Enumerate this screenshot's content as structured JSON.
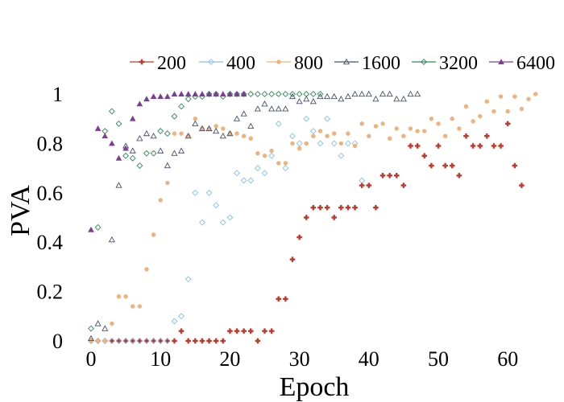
{
  "chart_data": {
    "type": "scatter",
    "xlabel": "Epoch",
    "ylabel": "PVA",
    "xlim": [
      -3,
      65
    ],
    "ylim": [
      0,
      1.05
    ],
    "xticks": [
      0,
      10,
      20,
      30,
      40,
      50,
      60
    ],
    "yticks": [
      0,
      0.2,
      0.4,
      0.6,
      0.8,
      1
    ],
    "ytick_labels": [
      "0",
      "0.2",
      "0.4",
      "0.6",
      "0.8",
      "1"
    ],
    "legend_position": "top",
    "grid": false,
    "series": [
      {
        "name": "200",
        "color": "#c0392b",
        "marker": "plus",
        "points": [
          [
            0,
            0
          ],
          [
            1,
            0
          ],
          [
            2,
            0
          ],
          [
            3,
            0
          ],
          [
            4,
            0
          ],
          [
            5,
            0
          ],
          [
            6,
            0
          ],
          [
            7,
            0
          ],
          [
            8,
            0
          ],
          [
            9,
            0
          ],
          [
            10,
            0
          ],
          [
            11,
            0
          ],
          [
            12,
            0
          ],
          [
            13,
            0.04
          ],
          [
            14,
            0
          ],
          [
            15,
            0
          ],
          [
            16,
            0
          ],
          [
            17,
            0
          ],
          [
            18,
            0
          ],
          [
            19,
            0
          ],
          [
            20,
            0.04
          ],
          [
            21,
            0.04
          ],
          [
            22,
            0.04
          ],
          [
            23,
            0.04
          ],
          [
            24,
            0
          ],
          [
            25,
            0.04
          ],
          [
            26,
            0.04
          ],
          [
            27,
            0.17
          ],
          [
            28,
            0.17
          ],
          [
            29,
            0.33
          ],
          [
            30,
            0.42
          ],
          [
            31,
            0.5
          ],
          [
            32,
            0.54
          ],
          [
            33,
            0.54
          ],
          [
            34,
            0.54
          ],
          [
            35,
            0.5
          ],
          [
            36,
            0.54
          ],
          [
            37,
            0.54
          ],
          [
            38,
            0.54
          ],
          [
            39,
            0.63
          ],
          [
            40,
            0.63
          ],
          [
            41,
            0.54
          ],
          [
            42,
            0.67
          ],
          [
            43,
            0.67
          ],
          [
            44,
            0.67
          ],
          [
            45,
            0.63
          ],
          [
            46,
            0.79
          ],
          [
            47,
            0.79
          ],
          [
            48,
            0.75
          ],
          [
            49,
            0.71
          ],
          [
            50,
            0.79
          ],
          [
            51,
            0.71
          ],
          [
            52,
            0.71
          ],
          [
            53,
            0.67
          ],
          [
            54,
            0.83
          ],
          [
            55,
            0.79
          ],
          [
            56,
            0.79
          ],
          [
            57,
            0.83
          ],
          [
            58,
            0.79
          ],
          [
            59,
            0.79
          ],
          [
            60,
            0.88
          ],
          [
            61,
            0.71
          ],
          [
            62,
            0.63
          ]
        ]
      },
      {
        "name": "400",
        "color": "#85c1e9",
        "marker": "diamond-open",
        "points": [
          [
            0,
            0
          ],
          [
            1,
            0
          ],
          [
            2,
            0
          ],
          [
            3,
            0
          ],
          [
            4,
            0
          ],
          [
            5,
            0
          ],
          [
            6,
            0
          ],
          [
            7,
            0
          ],
          [
            8,
            0
          ],
          [
            9,
            0
          ],
          [
            10,
            0
          ],
          [
            11,
            0
          ],
          [
            12,
            0.08
          ],
          [
            13,
            0.1
          ],
          [
            14,
            0.25
          ],
          [
            15,
            0.6
          ],
          [
            16,
            0.48
          ],
          [
            17,
            0.6
          ],
          [
            18,
            0.55
          ],
          [
            19,
            0.48
          ],
          [
            20,
            0.5
          ],
          [
            21,
            0.68
          ],
          [
            22,
            0.65
          ],
          [
            23,
            0.65
          ],
          [
            24,
            0.7
          ],
          [
            25,
            0.68
          ],
          [
            26,
            0.75
          ],
          [
            27,
            0.88
          ],
          [
            28,
            0.7
          ],
          [
            29,
            0.83
          ],
          [
            30,
            0.8
          ],
          [
            31,
            0.9
          ],
          [
            32,
            0.85
          ],
          [
            33,
            0.8
          ],
          [
            34,
            0.9
          ],
          [
            35,
            0.8
          ],
          [
            36,
            0.75
          ],
          [
            37,
            0.8
          ],
          [
            38,
            0.8
          ],
          [
            39,
            0.65
          ]
        ]
      },
      {
        "name": "800",
        "color": "#f0b27a",
        "marker": "dot",
        "points": [
          [
            0,
            0
          ],
          [
            1,
            0
          ],
          [
            2,
            0
          ],
          [
            3,
            0.07
          ],
          [
            4,
            0.18
          ],
          [
            5,
            0.18
          ],
          [
            6,
            0.14
          ],
          [
            7,
            0.14
          ],
          [
            8,
            0.29
          ],
          [
            9,
            0.43
          ],
          [
            10,
            0.57
          ],
          [
            11,
            0.64
          ],
          [
            12,
            0.84
          ],
          [
            13,
            0.84
          ],
          [
            14,
            0.83
          ],
          [
            15,
            0.9
          ],
          [
            16,
            0.86
          ],
          [
            17,
            0.86
          ],
          [
            18,
            0.87
          ],
          [
            19,
            0.86
          ],
          [
            20,
            0.84
          ],
          [
            21,
            0.84
          ],
          [
            22,
            0.83
          ],
          [
            23,
            0.82
          ],
          [
            24,
            0.76
          ],
          [
            25,
            0.75
          ],
          [
            26,
            0.77
          ],
          [
            27,
            0.72
          ],
          [
            28,
            0.72
          ],
          [
            29,
            0.8
          ],
          [
            30,
            0.78
          ],
          [
            31,
            0.8
          ],
          [
            32,
            0.83
          ],
          [
            33,
            0.85
          ],
          [
            34,
            0.83
          ],
          [
            35,
            0.84
          ],
          [
            36,
            0.8
          ],
          [
            37,
            0.84
          ],
          [
            38,
            0.79
          ],
          [
            39,
            0.88
          ],
          [
            40,
            0.83
          ],
          [
            41,
            0.87
          ],
          [
            42,
            0.88
          ],
          [
            43,
            0.82
          ],
          [
            44,
            0.86
          ],
          [
            45,
            0.83
          ],
          [
            46,
            0.86
          ],
          [
            47,
            0.85
          ],
          [
            48,
            0.85
          ],
          [
            49,
            0.9
          ],
          [
            50,
            0.88
          ],
          [
            51,
            0.83
          ],
          [
            52,
            0.9
          ],
          [
            53,
            0.86
          ],
          [
            54,
            0.95
          ],
          [
            55,
            0.89
          ],
          [
            56,
            0.91
          ],
          [
            57,
            0.97
          ],
          [
            58,
            0.93
          ],
          [
            59,
            0.99
          ],
          [
            60,
            0.93
          ],
          [
            61,
            0.99
          ],
          [
            62,
            0.94
          ],
          [
            63,
            0.98
          ],
          [
            64,
            1.0
          ]
        ]
      },
      {
        "name": "1600",
        "color": "#4a4f6a",
        "marker": "triangle-open",
        "points": [
          [
            0,
            0.01
          ],
          [
            1,
            0.07
          ],
          [
            2,
            0.05
          ],
          [
            3,
            0.41
          ],
          [
            4,
            0.63
          ],
          [
            5,
            0.79
          ],
          [
            6,
            0.77
          ],
          [
            7,
            0.82
          ],
          [
            8,
            0.84
          ],
          [
            9,
            0.83
          ],
          [
            10,
            0.77
          ],
          [
            11,
            0.71
          ],
          [
            12,
            0.76
          ],
          [
            13,
            0.77
          ],
          [
            14,
            0.83
          ],
          [
            15,
            0.88
          ],
          [
            16,
            0.86
          ],
          [
            17,
            0.86
          ],
          [
            18,
            0.85
          ],
          [
            19,
            0.83
          ],
          [
            20,
            0.84
          ],
          [
            21,
            0.9
          ],
          [
            22,
            0.92
          ],
          [
            23,
            0.87
          ],
          [
            24,
            0.94
          ],
          [
            25,
            0.96
          ],
          [
            26,
            0.94
          ],
          [
            27,
            0.94
          ],
          [
            28,
            0.94
          ],
          [
            29,
            0.99
          ],
          [
            30,
            0.97
          ],
          [
            31,
            0.98
          ],
          [
            32,
            0.97
          ],
          [
            33,
            0.99
          ],
          [
            34,
            0.99
          ],
          [
            35,
            0.99
          ],
          [
            36,
            0.98
          ],
          [
            37,
            0.99
          ],
          [
            38,
            1.0
          ],
          [
            39,
            1.0
          ],
          [
            40,
            1.0
          ],
          [
            41,
            0.98
          ],
          [
            42,
            1.0
          ],
          [
            43,
            1.0
          ],
          [
            44,
            0.98
          ],
          [
            45,
            0.98
          ],
          [
            46,
            1.0
          ],
          [
            47,
            1.0
          ]
        ]
      },
      {
        "name": "3200",
        "color": "#2e8b57",
        "marker": "diamond-open",
        "points": [
          [
            0,
            0.05
          ],
          [
            1,
            0.46
          ],
          [
            2,
            0.85
          ],
          [
            3,
            0.93
          ],
          [
            4,
            0.88
          ],
          [
            5,
            0.75
          ],
          [
            6,
            0.74
          ],
          [
            7,
            0.71
          ],
          [
            8,
            0.76
          ],
          [
            9,
            0.76
          ],
          [
            10,
            0.85
          ],
          [
            11,
            0.84
          ],
          [
            12,
            0.91
          ],
          [
            13,
            0.95
          ],
          [
            14,
            0.98
          ],
          [
            15,
            0.99
          ],
          [
            16,
            0.99
          ],
          [
            17,
            1.0
          ],
          [
            18,
            1.0
          ],
          [
            19,
            0.99
          ],
          [
            20,
            1.0
          ],
          [
            21,
            1.0
          ],
          [
            22,
            1.0
          ],
          [
            23,
            1.0
          ],
          [
            24,
            1.0
          ],
          [
            25,
            1.0
          ],
          [
            26,
            1.0
          ],
          [
            27,
            1.0
          ],
          [
            28,
            1.0
          ],
          [
            29,
            1.0
          ],
          [
            30,
            1.0
          ],
          [
            31,
            1.0
          ],
          [
            32,
            1.0
          ],
          [
            33,
            1.0
          ]
        ]
      },
      {
        "name": "6400",
        "color": "#7d3c98",
        "marker": "triangle-filled",
        "points": [
          [
            0,
            0.45
          ],
          [
            1,
            0.86
          ],
          [
            2,
            0.83
          ],
          [
            3,
            0.8
          ],
          [
            4,
            0.74
          ],
          [
            5,
            0.78
          ],
          [
            6,
            0.9
          ],
          [
            7,
            0.96
          ],
          [
            8,
            0.98
          ],
          [
            9,
            0.99
          ],
          [
            10,
            0.99
          ],
          [
            11,
            0.99
          ],
          [
            12,
            1.0
          ],
          [
            13,
            1.0
          ],
          [
            14,
            1.0
          ],
          [
            15,
            1.0
          ],
          [
            16,
            1.0
          ],
          [
            17,
            1.0
          ],
          [
            18,
            1.0
          ],
          [
            19,
            1.0
          ],
          [
            20,
            1.0
          ],
          [
            21,
            1.0
          ],
          [
            22,
            1.0
          ]
        ]
      }
    ]
  }
}
